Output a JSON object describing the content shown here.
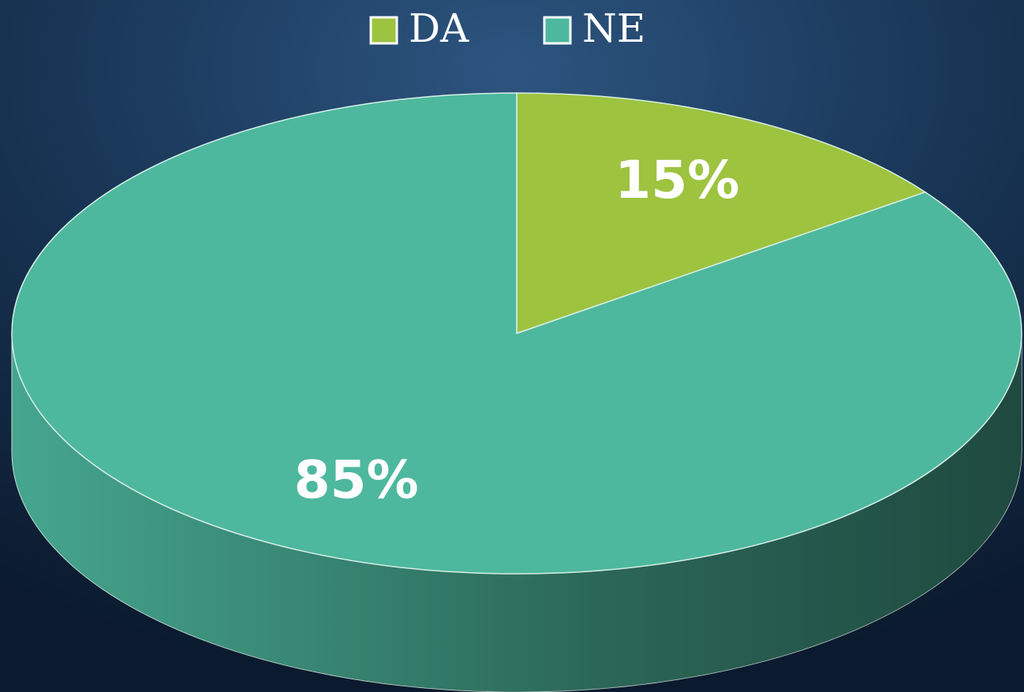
{
  "chart_data": {
    "type": "pie",
    "categories": [
      "DA",
      "NE"
    ],
    "values": [
      15,
      85
    ],
    "value_labels": [
      "15%",
      "85%"
    ],
    "colors": [
      "#9dc33f",
      "#4db89e"
    ],
    "legend": "top"
  }
}
